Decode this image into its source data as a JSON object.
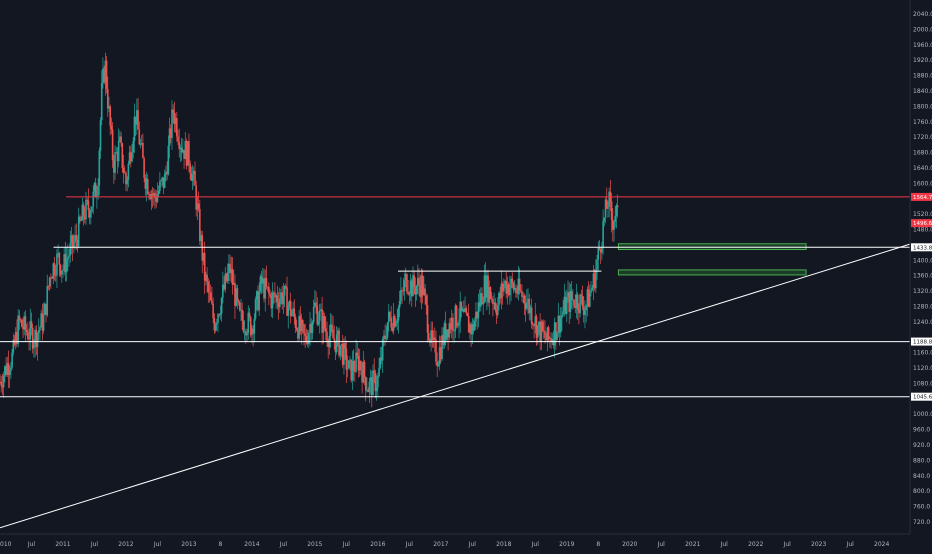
{
  "chart_data": {
    "type": "candlestick",
    "symbol": "",
    "colors": {
      "background": "#131722",
      "up": "#26a69a",
      "down": "#ef5350",
      "resistance_line": "#f23645",
      "level_line": "#ffffff",
      "trend_line": "#ffffff",
      "zone_fill": "#1e4d2b",
      "zone_border": "#4caf50",
      "axis_text": "#b2b5be",
      "badge_bg": "#ffffff",
      "badge_text": "#131722",
      "badge_red": "#f23645"
    },
    "x_axis": {
      "range": [
        2010.0,
        2024.45
      ],
      "ticks": [
        {
          "t": 2010.0,
          "label": "010"
        },
        {
          "t": 2010.5,
          "label": "Jul"
        },
        {
          "t": 2011.0,
          "label": "2011"
        },
        {
          "t": 2011.5,
          "label": "Jul"
        },
        {
          "t": 2012.0,
          "label": "2012"
        },
        {
          "t": 2012.5,
          "label": "Jul"
        },
        {
          "t": 2013.0,
          "label": "2013"
        },
        {
          "t": 2013.5,
          "label": "8"
        },
        {
          "t": 2014.0,
          "label": "2014"
        },
        {
          "t": 2014.5,
          "label": "Jul"
        },
        {
          "t": 2015.0,
          "label": "2015"
        },
        {
          "t": 2015.5,
          "label": "Jul"
        },
        {
          "t": 2016.0,
          "label": "2016"
        },
        {
          "t": 2016.5,
          "label": "Jul"
        },
        {
          "t": 2017.0,
          "label": "2017"
        },
        {
          "t": 2017.5,
          "label": "Jul"
        },
        {
          "t": 2018.0,
          "label": "2018"
        },
        {
          "t": 2018.5,
          "label": "Jul"
        },
        {
          "t": 2019.0,
          "label": "2019"
        },
        {
          "t": 2019.5,
          "label": "8"
        },
        {
          "t": 2020.0,
          "label": "2020"
        },
        {
          "t": 2020.5,
          "label": "Jul"
        },
        {
          "t": 2021.0,
          "label": "2021"
        },
        {
          "t": 2021.5,
          "label": "Jul"
        },
        {
          "t": 2022.0,
          "label": "2022"
        },
        {
          "t": 2022.5,
          "label": "Jul"
        },
        {
          "t": 2023.0,
          "label": "2023"
        },
        {
          "t": 2023.5,
          "label": "Jul"
        },
        {
          "t": 2024.0,
          "label": "2024"
        }
      ]
    },
    "y_axis": {
      "range": [
        692,
        2065
      ],
      "ticks": [
        "2040.0",
        "2000.0",
        "1960.0",
        "1920.0",
        "1880.0",
        "1840.0",
        "1800.0",
        "1760.0",
        "1720.0",
        "1680.0",
        "1640.0",
        "1600.0",
        "1520.0",
        "1480.0",
        "1400.0",
        "1360.0",
        "1320.0",
        "1280.0",
        "1240.0",
        "1160.0",
        "1120.0",
        "1080.0",
        "1000.0",
        "960.0",
        "920.0",
        "880.0",
        "840.0",
        "800.0",
        "760.0",
        "720.0"
      ]
    },
    "price_path": [
      [
        2010.0,
        1085
      ],
      [
        2010.12,
        1130
      ],
      [
        2010.2,
        1150
      ],
      [
        2010.3,
        1240
      ],
      [
        2010.4,
        1220
      ],
      [
        2010.55,
        1200
      ],
      [
        2010.7,
        1250
      ],
      [
        2010.8,
        1370
      ],
      [
        2010.92,
        1405
      ],
      [
        2011.0,
        1380
      ],
      [
        2011.1,
        1420
      ],
      [
        2011.2,
        1450
      ],
      [
        2011.32,
        1520
      ],
      [
        2011.45,
        1545
      ],
      [
        2011.55,
        1600
      ],
      [
        2011.62,
        1850
      ],
      [
        2011.67,
        1910
      ],
      [
        2011.72,
        1800
      ],
      [
        2011.8,
        1650
      ],
      [
        2011.9,
        1700
      ],
      [
        2012.0,
        1600
      ],
      [
        2012.15,
        1780
      ],
      [
        2012.3,
        1620
      ],
      [
        2012.45,
        1560
      ],
      [
        2012.62,
        1610
      ],
      [
        2012.75,
        1790
      ],
      [
        2012.88,
        1700
      ],
      [
        2013.0,
        1670
      ],
      [
        2013.1,
        1580
      ],
      [
        2013.25,
        1360
      ],
      [
        2013.4,
        1240
      ],
      [
        2013.5,
        1290
      ],
      [
        2013.65,
        1380
      ],
      [
        2013.8,
        1250
      ],
      [
        2014.0,
        1230
      ],
      [
        2014.15,
        1340
      ],
      [
        2014.3,
        1300
      ],
      [
        2014.5,
        1310
      ],
      [
        2014.7,
        1240
      ],
      [
        2014.85,
        1190
      ],
      [
        2015.0,
        1280
      ],
      [
        2015.2,
        1210
      ],
      [
        2015.4,
        1180
      ],
      [
        2015.55,
        1110
      ],
      [
        2015.7,
        1140
      ],
      [
        2015.85,
        1070
      ],
      [
        2016.0,
        1090
      ],
      [
        2016.15,
        1240
      ],
      [
        2016.3,
        1260
      ],
      [
        2016.45,
        1350
      ],
      [
        2016.55,
        1330
      ],
      [
        2016.7,
        1340
      ],
      [
        2016.85,
        1180
      ],
      [
        2016.95,
        1150
      ],
      [
        2017.1,
        1230
      ],
      [
        2017.3,
        1260
      ],
      [
        2017.5,
        1220
      ],
      [
        2017.7,
        1340
      ],
      [
        2017.9,
        1280
      ],
      [
        2018.0,
        1340
      ],
      [
        2018.15,
        1330
      ],
      [
        2018.35,
        1300
      ],
      [
        2018.55,
        1220
      ],
      [
        2018.7,
        1190
      ],
      [
        2018.85,
        1230
      ],
      [
        2019.0,
        1290
      ],
      [
        2019.15,
        1300
      ],
      [
        2019.3,
        1280
      ],
      [
        2019.42,
        1340
      ],
      [
        2019.52,
        1430
      ],
      [
        2019.6,
        1510
      ],
      [
        2019.66,
        1560
      ],
      [
        2019.72,
        1500
      ],
      [
        2019.78,
        1530
      ],
      [
        2019.82,
        1497
      ]
    ],
    "horizontal_levels": [
      {
        "id": "resistance",
        "value": 1564.7,
        "label": "1564.7",
        "style": "red",
        "x_start": 2011.05
      },
      {
        "id": "level-1433",
        "value": 1433.8,
        "label": "1433.8",
        "style": "white",
        "x_start": 2010.85
      },
      {
        "id": "level-1372",
        "value": 1372,
        "label": "",
        "style": "white",
        "x_start": 2016.32,
        "x_end": 2019.55
      },
      {
        "id": "level-1188",
        "value": 1188.8,
        "label": "1188.8",
        "style": "white",
        "x_start": 2010.0
      },
      {
        "id": "level-1045",
        "value": 1045.6,
        "label": "1045.6",
        "style": "white",
        "x_start": 2010.0
      }
    ],
    "current_price": {
      "value": 1496.6,
      "label": "1496.6"
    },
    "trend_line": {
      "from": [
        2010.0,
        705
      ],
      "to": [
        2024.45,
        1442
      ]
    },
    "zones": [
      {
        "id": "zone-upper",
        "x_start": 2019.82,
        "x_end": 2022.8,
        "y_high": 1443,
        "y_low": 1428
      },
      {
        "id": "zone-lower",
        "x_start": 2019.82,
        "x_end": 2022.8,
        "y_high": 1375,
        "y_low": 1362
      }
    ]
  }
}
